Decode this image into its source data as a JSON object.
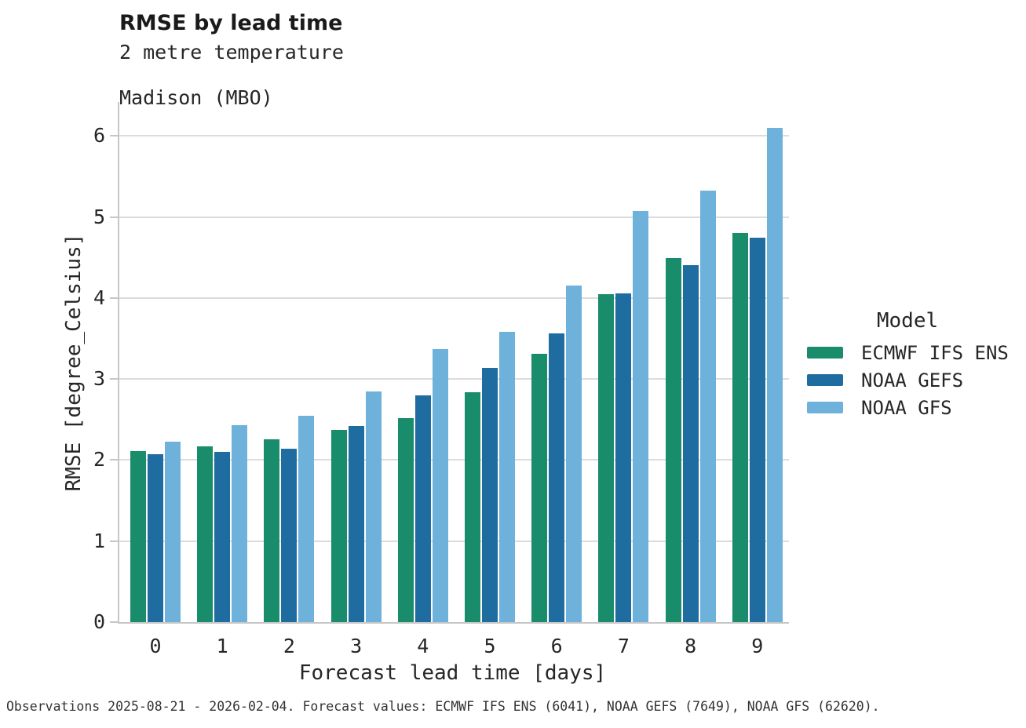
{
  "header": {
    "title": "RMSE by lead time",
    "subtitle_line1": "2 metre temperature",
    "subtitle_line2": "Madison (MBO)"
  },
  "chart_data": {
    "type": "bar",
    "title": "RMSE by lead time",
    "subtitle": [
      "2 metre temperature",
      "Madison (MBO)"
    ],
    "categories": [
      "0",
      "1",
      "2",
      "3",
      "4",
      "5",
      "6",
      "7",
      "8",
      "9"
    ],
    "series": [
      {
        "name": "ECMWF IFS ENS",
        "color": "#198c6b",
        "values": [
          2.11,
          2.17,
          2.26,
          2.37,
          2.52,
          2.84,
          3.31,
          4.05,
          4.49,
          4.8
        ]
      },
      {
        "name": "NOAA GEFS",
        "color": "#1f6da0",
        "values": [
          2.07,
          2.1,
          2.14,
          2.42,
          2.8,
          3.14,
          3.56,
          4.06,
          4.41,
          4.75
        ]
      },
      {
        "name": "NOAA GFS",
        "color": "#6eb1da",
        "values": [
          2.23,
          2.43,
          2.55,
          2.85,
          3.37,
          3.58,
          4.15,
          5.07,
          5.33,
          6.1
        ]
      }
    ],
    "xlabel": "Forecast lead time [days]",
    "ylabel": "RMSE [degree_Celsius]",
    "ylim": [
      0,
      6.42
    ],
    "yticks": [
      0,
      1,
      2,
      3,
      4,
      5,
      6
    ],
    "grid": "horizontal",
    "legend_title": "Model",
    "legend_position": "right"
  },
  "footer": {
    "note": "Observations 2025-08-21 - 2026-02-04. Forecast values: ECMWF IFS ENS (6041), NOAA GEFS (7649), NOAA GFS (62620)."
  },
  "colors": {
    "background": "#ffffff",
    "gridline": "#dcdcdc",
    "spine": "#c6c6c6",
    "text": "#262626",
    "title": "#1a1a1a",
    "footer_text": "#333333"
  }
}
